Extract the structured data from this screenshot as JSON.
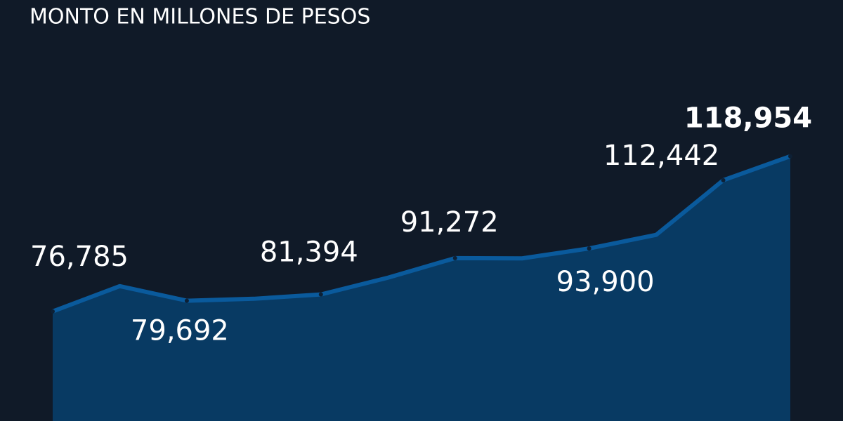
{
  "chart_data": {
    "type": "area",
    "title": "MONTO EN MILLONES DE PESOS",
    "categories": [
      null,
      null,
      null,
      null,
      null,
      null,
      null,
      null,
      null,
      null,
      null,
      null
    ],
    "values": [
      76785,
      83650,
      79692,
      80220,
      81394,
      85950,
      91272,
      91200,
      93900,
      97600,
      112442,
      118954
    ],
    "value_labels": [
      "76,785",
      null,
      "79,692",
      null,
      "81,394",
      null,
      "91,272",
      null,
      "93,900",
      null,
      "112,442",
      "118,954"
    ],
    "ylim": [
      47000,
      125000
    ],
    "color": "#0a5a9c",
    "fill": "#083a63",
    "background": "#101a28"
  }
}
